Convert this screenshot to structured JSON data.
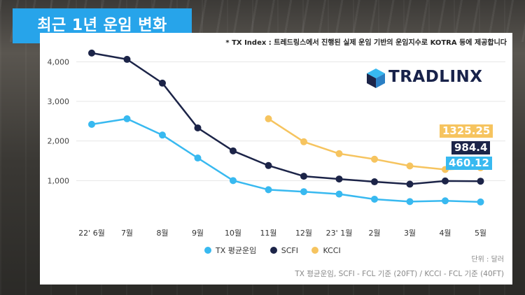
{
  "header": {
    "title": "최근 1년 운임 변화"
  },
  "note": "* TX Index : 트레드링스에서 진행된 실제 운임 기반의 운임지수로 KOTRA 등에 제공합니다",
  "logo": {
    "text": "TRADLINX"
  },
  "unit_label": "단위 : 달러",
  "footnote": "TX 평균운임, SCFI - FCL 기준 (20FT) / KCCI - FCL 기준 (40FT)",
  "callouts": [
    {
      "text": "1325.25",
      "color": "#f6c45f"
    },
    {
      "text": "984.4",
      "color": "#1c2448"
    },
    {
      "text": "460.12",
      "color": "#38b9f0"
    }
  ],
  "chart_data": {
    "type": "line",
    "categories": [
      "22' 6월",
      "7월",
      "8월",
      "9월",
      "10월",
      "11월",
      "12월",
      "23' 1월",
      "2월",
      "3월",
      "4월",
      "5월"
    ],
    "yticks": [
      "1,000",
      "2,000",
      "3,000",
      "4,000"
    ],
    "ylim": [
      0,
      4500
    ],
    "grid": true,
    "legend_position": "bottom",
    "series": [
      {
        "name": "TX 평균운임",
        "color": "#38b9f0",
        "values": [
          2420,
          2560,
          2150,
          1570,
          1000,
          770,
          720,
          660,
          530,
          470,
          490,
          460.12
        ]
      },
      {
        "name": "SCFI",
        "color": "#1c2448",
        "values": [
          4220,
          4060,
          3460,
          2330,
          1750,
          1380,
          1110,
          1040,
          970,
          910,
          990,
          984.4
        ]
      },
      {
        "name": "KCCI",
        "color": "#f6c45f",
        "values": [
          null,
          null,
          null,
          null,
          null,
          2560,
          1980,
          1680,
          1540,
          1370,
          1280,
          1325.25
        ]
      }
    ]
  }
}
